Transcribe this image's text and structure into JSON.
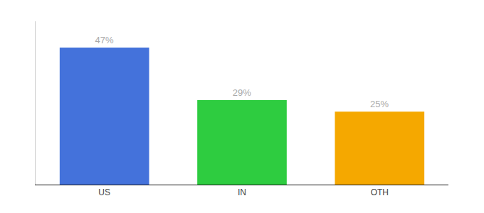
{
  "chart_data": {
    "type": "bar",
    "categories": [
      "US",
      "IN",
      "OTH"
    ],
    "values": [
      47,
      29,
      25
    ],
    "value_labels": [
      "47%",
      "29%",
      "25%"
    ],
    "data_labels": true,
    "colors": [
      "#4472db",
      "#2ecc40",
      "#f5a800"
    ],
    "ylim": [
      0,
      56
    ],
    "yticks": [],
    "tick_labels": "x",
    "grid": false
  }
}
